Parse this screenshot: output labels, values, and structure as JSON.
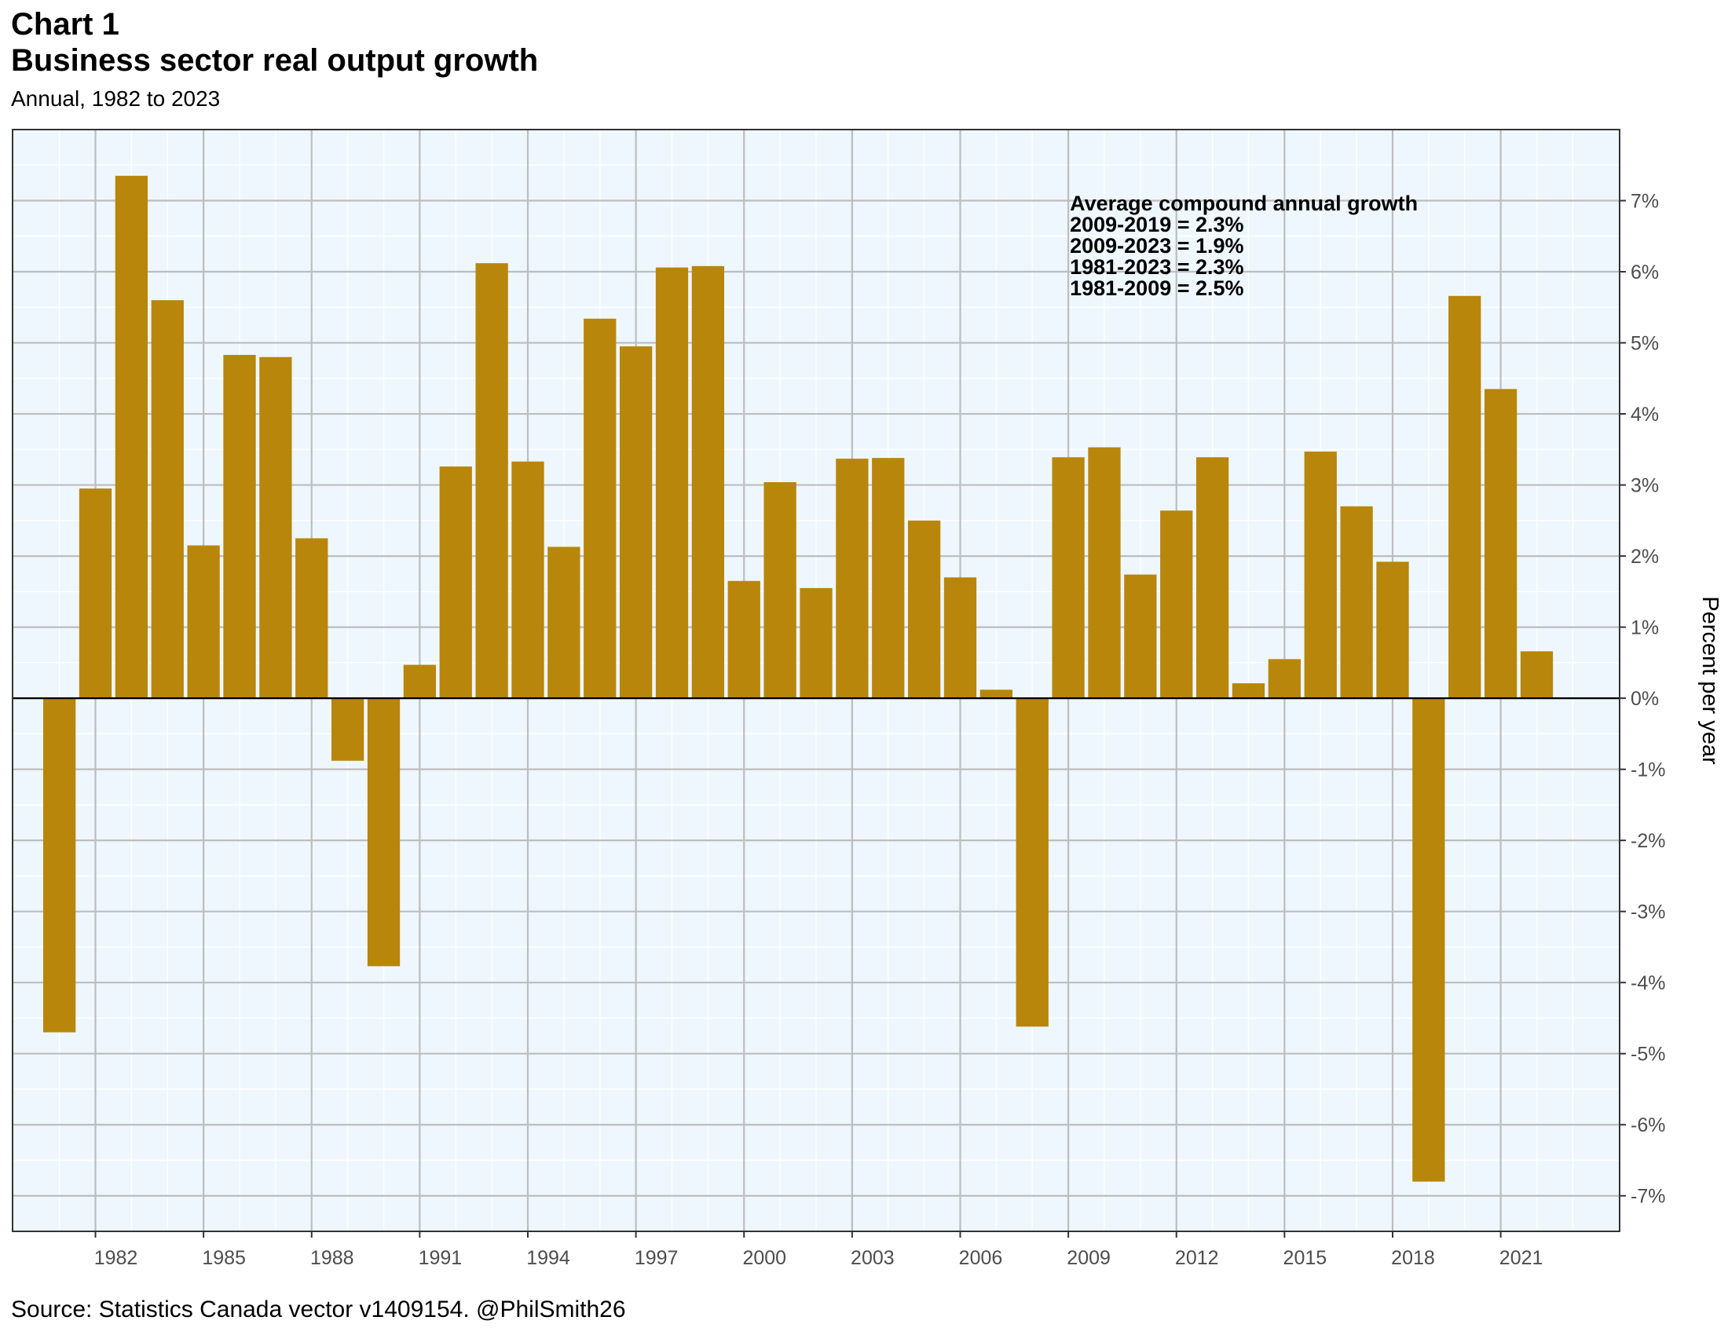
{
  "header": {
    "label": "Chart 1",
    "title": "Business sector real output growth",
    "subtitle": "Annual, 1982 to 2023"
  },
  "source": "Source: Statistics Canada vector v1409154. @PhilSmith26",
  "colors": {
    "bar": "#B8860B",
    "panel_background": "#EEF7FE",
    "grid_major": "#BDBDBD",
    "grid_minor": "#FFFFFF",
    "zero_line": "#000000"
  },
  "chart_data": {
    "type": "bar",
    "categories": [
      1981,
      1982,
      1983,
      1984,
      1985,
      1986,
      1987,
      1988,
      1989,
      1990,
      1991,
      1992,
      1993,
      1994,
      1995,
      1996,
      1997,
      1998,
      1999,
      2000,
      2001,
      2002,
      2003,
      2004,
      2005,
      2006,
      2007,
      2008,
      2009,
      2010,
      2011,
      2012,
      2013,
      2014,
      2015,
      2016,
      2017,
      2018,
      2019,
      2020,
      2021,
      2022,
      2023
    ],
    "values": [
      -4.7,
      2.95,
      7.35,
      5.6,
      2.15,
      4.83,
      4.8,
      2.25,
      -0.88,
      -3.77,
      0.47,
      3.26,
      6.12,
      3.33,
      2.13,
      5.34,
      4.95,
      6.06,
      6.08,
      1.65,
      3.04,
      1.55,
      3.37,
      3.38,
      2.5,
      1.7,
      0.12,
      -4.62,
      3.39,
      3.53,
      1.74,
      2.64,
      3.39,
      0.21,
      0.55,
      3.47,
      2.7,
      1.92,
      -6.8,
      5.66,
      4.35,
      0.66,
      0.0
    ],
    "x_ticks": [
      "1982",
      "1985",
      "1988",
      "1991",
      "1994",
      "1997",
      "2000",
      "2003",
      "2006",
      "2009",
      "2012",
      "2015",
      "2018",
      "2021"
    ],
    "y_ticks": [
      "7%",
      "6%",
      "5%",
      "4%",
      "3%",
      "2%",
      "1%",
      "0%",
      "-1%",
      "-2%",
      "-3%",
      "-4%",
      "-5%",
      "-6%",
      "-7%"
    ],
    "ylabel": "Percent per year",
    "xlabel": "",
    "ylim": [
      -7.5,
      8.0
    ],
    "grid": true,
    "y_axis_position": "right",
    "annotation": {
      "heading": "Average compound annual growth",
      "lines": [
        "2009-2019 = 2.3%",
        "2009-2023 = 1.9%",
        "1981-2023 = 2.3%",
        "1981-2009 = 2.5%"
      ]
    }
  }
}
